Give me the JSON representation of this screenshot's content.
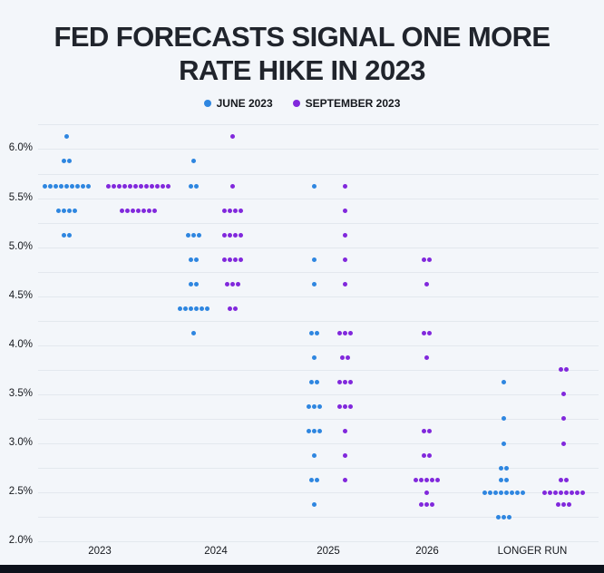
{
  "page": {
    "background_color": "#f3f6fa",
    "footer_bar_color": "#0c111b"
  },
  "title": {
    "line1": "FED FORECASTS SIGNAL ONE MORE",
    "line2": "RATE HIKE IN 2023"
  },
  "legend": [
    {
      "label": "JUNE 2023",
      "color": "#2e86e0"
    },
    {
      "label": "SEPTEMBER 2023",
      "color": "#8128dc"
    }
  ],
  "chart_data": {
    "type": "scatter",
    "subtype": "fomc-dot-plot",
    "title": "FED FORECASTS SIGNAL ONE MORE RATE HIKE IN 2023",
    "legend_entries": [
      "JUNE 2023",
      "SEPTEMBER 2023"
    ],
    "legend_position": "top-center",
    "grid": true,
    "gridline_color": "#e3e8ee",
    "series_colors": {
      "june": "#2e86e0",
      "september": "#8128dc"
    },
    "y_axis": {
      "unit": "percent (federal funds rate)",
      "min": 2.0,
      "max": 6.25,
      "gridline_step": 0.25,
      "tick_labels": [
        "6.0%",
        "5.5%",
        "5.0%",
        "4.5%",
        "4.0%",
        "3.5%",
        "3.0%",
        "2.5%",
        "2.0%"
      ],
      "tick_values": [
        6.0,
        5.5,
        5.0,
        4.5,
        4.0,
        3.5,
        3.0,
        2.5,
        2.0
      ]
    },
    "x_categories": [
      "2023",
      "2024",
      "2025",
      "2026",
      "LONGER RUN"
    ],
    "dot_note": "each entry is [rate_percent, number_of_dots]",
    "columns": [
      {
        "label": "2023",
        "june": [
          [
            6.125,
            1
          ],
          [
            5.875,
            2
          ],
          [
            5.625,
            9
          ],
          [
            5.375,
            4
          ],
          [
            5.125,
            2
          ]
        ],
        "september": [
          [
            5.625,
            12
          ],
          [
            5.375,
            7
          ]
        ]
      },
      {
        "label": "2024",
        "june": [
          [
            5.875,
            1
          ],
          [
            5.625,
            2
          ],
          [
            5.125,
            3
          ],
          [
            4.875,
            2
          ],
          [
            4.625,
            2
          ],
          [
            4.375,
            6
          ],
          [
            4.125,
            1
          ]
        ],
        "september": [
          [
            6.125,
            1
          ],
          [
            5.625,
            1
          ],
          [
            5.375,
            4
          ],
          [
            5.125,
            4
          ],
          [
            4.875,
            4
          ],
          [
            4.625,
            3
          ],
          [
            4.375,
            2
          ]
        ]
      },
      {
        "label": "2025",
        "june": [
          [
            5.625,
            1
          ],
          [
            4.875,
            1
          ],
          [
            4.625,
            1
          ],
          [
            4.125,
            2
          ],
          [
            3.875,
            1
          ],
          [
            3.625,
            2
          ],
          [
            3.375,
            3
          ],
          [
            3.125,
            3
          ],
          [
            2.875,
            1
          ],
          [
            2.625,
            2
          ],
          [
            2.375,
            1
          ]
        ],
        "september": [
          [
            5.625,
            1
          ],
          [
            5.375,
            1
          ],
          [
            5.125,
            1
          ],
          [
            4.875,
            1
          ],
          [
            4.625,
            1
          ],
          [
            4.125,
            3
          ],
          [
            3.875,
            2
          ],
          [
            3.625,
            3
          ],
          [
            3.375,
            3
          ],
          [
            3.125,
            1
          ],
          [
            2.875,
            1
          ],
          [
            2.625,
            1
          ]
        ]
      },
      {
        "label": "2026",
        "june": [],
        "september": [
          [
            4.875,
            2
          ],
          [
            4.625,
            1
          ],
          [
            4.125,
            2
          ],
          [
            3.875,
            1
          ],
          [
            3.125,
            2
          ],
          [
            2.875,
            2
          ],
          [
            2.625,
            5
          ],
          [
            2.5,
            1
          ],
          [
            2.375,
            3
          ]
        ]
      },
      {
        "label": "LONGER RUN",
        "june": [
          [
            3.625,
            1
          ],
          [
            3.25,
            1
          ],
          [
            3.0,
            1
          ],
          [
            2.75,
            2
          ],
          [
            2.625,
            2
          ],
          [
            2.5,
            8
          ],
          [
            2.25,
            3
          ]
        ],
        "september": [
          [
            3.75,
            2
          ],
          [
            3.5,
            1
          ],
          [
            3.25,
            1
          ],
          [
            3.0,
            1
          ],
          [
            2.625,
            2
          ],
          [
            2.5,
            8
          ],
          [
            2.375,
            3
          ]
        ]
      }
    ]
  }
}
